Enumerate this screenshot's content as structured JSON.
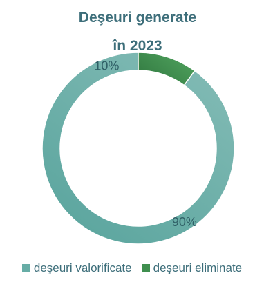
{
  "chart_data": {
    "type": "pie",
    "title_lines": [
      "Deşeuri generate",
      "în 2023"
    ],
    "series": [
      {
        "name": "deşeuri valorificate",
        "value": 90,
        "label": "90%",
        "color": "#67ada6"
      },
      {
        "name": "deşeuri eliminate",
        "value": 10,
        "label": "10%",
        "color": "#3f8f4f"
      }
    ],
    "donut": true,
    "legend_position": "bottom"
  }
}
